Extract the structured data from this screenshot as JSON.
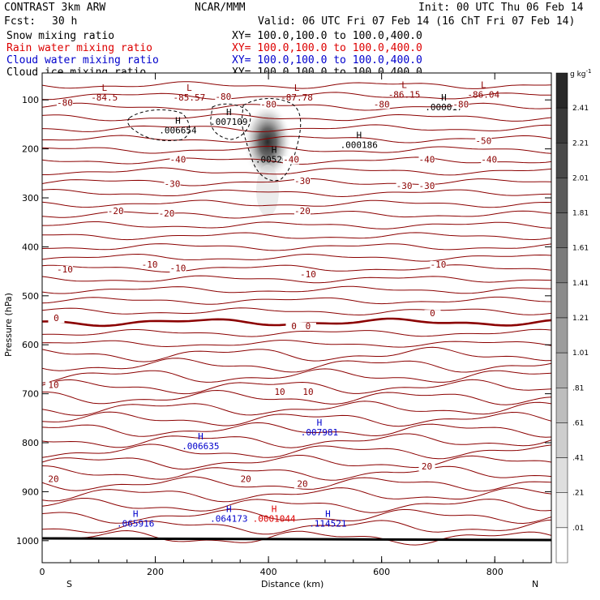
{
  "header": {
    "model": "CONTRAST  3km ARW",
    "org": "NCAR/MMM",
    "init": "Init: 00 UTC Thu 06 Feb 14",
    "fcst_label": "Fcst:",
    "fcst_value": "30 h",
    "valid": "Valid: 06 UTC Fri 07 Feb 14 (16 ChT Fri 07 Feb 14)"
  },
  "fields": [
    {
      "name": "Snow mixing ratio",
      "xy": "XY= 100.0,100.0 to 100.0,400.0",
      "color": "#000000"
    },
    {
      "name": "Rain water mixing ratio",
      "xy": "XY= 100.0,100.0 to 100.0,400.0",
      "color": "#dd0000"
    },
    {
      "name": "Cloud water mixing ratio",
      "xy": "XY= 100.0,100.0 to 100.0,400.0",
      "color": "#0000cc"
    },
    {
      "name": "Cloud ice mixing ratio",
      "xy": "XY= 100.0,100.0 to 100.0,400.0",
      "color": "#000000"
    }
  ],
  "chart_data": {
    "type": "cross-section",
    "xlabel": "Distance (km)",
    "ylabel": "Pressure (hPa)",
    "xlim": [
      0,
      900
    ],
    "ylim": [
      1045,
      45
    ],
    "x_ticks": [
      0,
      200,
      400,
      600,
      800
    ],
    "x_tick_labels": [
      "0",
      "200",
      "400",
      "600",
      "800"
    ],
    "y_ticks": [
      100,
      200,
      300,
      400,
      500,
      600,
      700,
      800,
      900,
      1000
    ],
    "y_tick_labels": [
      "100",
      "200",
      "300",
      "400",
      "500",
      "600",
      "700",
      "800",
      "900",
      "1000"
    ],
    "left_end": "S",
    "right_end": "N",
    "colorbar": {
      "unit": "g kg",
      "unit_exp": "-1",
      "levels": [
        "2.41",
        "2.21",
        "2.01",
        "1.81",
        "1.61",
        "1.41",
        "1.21",
        "1.01",
        ".81",
        ".61",
        ".41",
        ".21",
        ".01"
      ]
    },
    "temperature_contours": [
      {
        "p": 100,
        "label": "-80",
        "x": 320
      },
      {
        "p": 112,
        "label": "-80",
        "x": 40
      },
      {
        "p": 115,
        "label": "-80",
        "x": 400
      },
      {
        "p": 115,
        "label": "-80",
        "x": 600
      },
      {
        "p": 115,
        "label": "-80",
        "x": 740
      },
      {
        "p": 190,
        "label": "-50",
        "x": 780
      },
      {
        "p": 228,
        "label": "-40",
        "x": 240
      },
      {
        "p": 228,
        "label": "-40",
        "x": 440
      },
      {
        "p": 228,
        "label": "-40",
        "x": 680
      },
      {
        "p": 228,
        "label": "-40",
        "x": 790
      },
      {
        "p": 278,
        "label": "-30",
        "x": 230
      },
      {
        "p": 272,
        "label": "-30",
        "x": 460
      },
      {
        "p": 282,
        "label": "-30",
        "x": 640
      },
      {
        "p": 282,
        "label": "-30",
        "x": 680
      },
      {
        "p": 333,
        "label": "-20",
        "x": 130
      },
      {
        "p": 338,
        "label": "-20",
        "x": 220
      },
      {
        "p": 333,
        "label": "-20",
        "x": 460
      },
      {
        "p": 452,
        "label": "-10",
        "x": 40
      },
      {
        "p": 442,
        "label": "-10",
        "x": 190
      },
      {
        "p": 450,
        "label": "-10",
        "x": 240
      },
      {
        "p": 462,
        "label": "-10",
        "x": 470
      },
      {
        "p": 442,
        "label": "-10",
        "x": 700
      },
      {
        "p": 552,
        "label": "0",
        "x": 25
      },
      {
        "p": 568,
        "label": "0",
        "x": 445
      },
      {
        "p": 568,
        "label": "0",
        "x": 470
      },
      {
        "p": 542,
        "label": "0",
        "x": 690
      },
      {
        "p": 688,
        "label": "10",
        "x": 20
      },
      {
        "p": 702,
        "label": "10",
        "x": 420
      },
      {
        "p": 702,
        "label": "10",
        "x": 470
      },
      {
        "p": 880,
        "label": "20",
        "x": 20
      },
      {
        "p": 880,
        "label": "20",
        "x": 360
      },
      {
        "p": 855,
        "label": "20",
        "x": 680
      },
      {
        "p": 890,
        "label": "20",
        "x": 460
      }
    ],
    "extrema": [
      {
        "type": "L",
        "value": "-84.5",
        "x": 110,
        "p": 98,
        "color": "#8b0000"
      },
      {
        "type": "L",
        "value": "-85.57",
        "x": 260,
        "p": 98,
        "color": "#8b0000"
      },
      {
        "type": "L",
        "value": "-87.78",
        "x": 450,
        "p": 98,
        "color": "#8b0000"
      },
      {
        "type": "L",
        "value": "-86.15",
        "x": 640,
        "p": 92,
        "color": "#8b0000"
      },
      {
        "type": "L",
        "value": "-86.04",
        "x": 780,
        "p": 92,
        "color": "#8b0000"
      },
      {
        "type": "H",
        "value": ".006654",
        "x": 240,
        "p": 165,
        "color": "#000000"
      },
      {
        "type": "H",
        "value": ".007109",
        "x": 330,
        "p": 148,
        "color": "#000000"
      },
      {
        "type": "H",
        "value": ".000017",
        "x": 710,
        "p": 118,
        "color": "#000000"
      },
      {
        "type": "H",
        "value": ".005262",
        "x": 410,
        "p": 225,
        "color": "#000000"
      },
      {
        "type": "H",
        "value": ".000186",
        "x": 560,
        "p": 195,
        "color": "#000000"
      },
      {
        "type": "H",
        "value": ".006635",
        "x": 280,
        "p": 810,
        "color": "#0000cc"
      },
      {
        "type": "H",
        "value": ".007981",
        "x": 490,
        "p": 782,
        "color": "#0000cc"
      },
      {
        "type": "H",
        "value": ".065916",
        "x": 165,
        "p": 968,
        "color": "#0000cc"
      },
      {
        "type": "H",
        "value": ".064173",
        "x": 330,
        "p": 958,
        "color": "#0000cc"
      },
      {
        "type": "H",
        "value": ".0001044",
        "x": 410,
        "p": 958,
        "color": "#dd0000"
      },
      {
        "type": "H",
        "value": ".114521",
        "x": 505,
        "p": 968,
        "color": "#0000cc"
      }
    ],
    "snow_max": {
      "x": 388,
      "p": 175,
      "value": "2.41"
    }
  }
}
